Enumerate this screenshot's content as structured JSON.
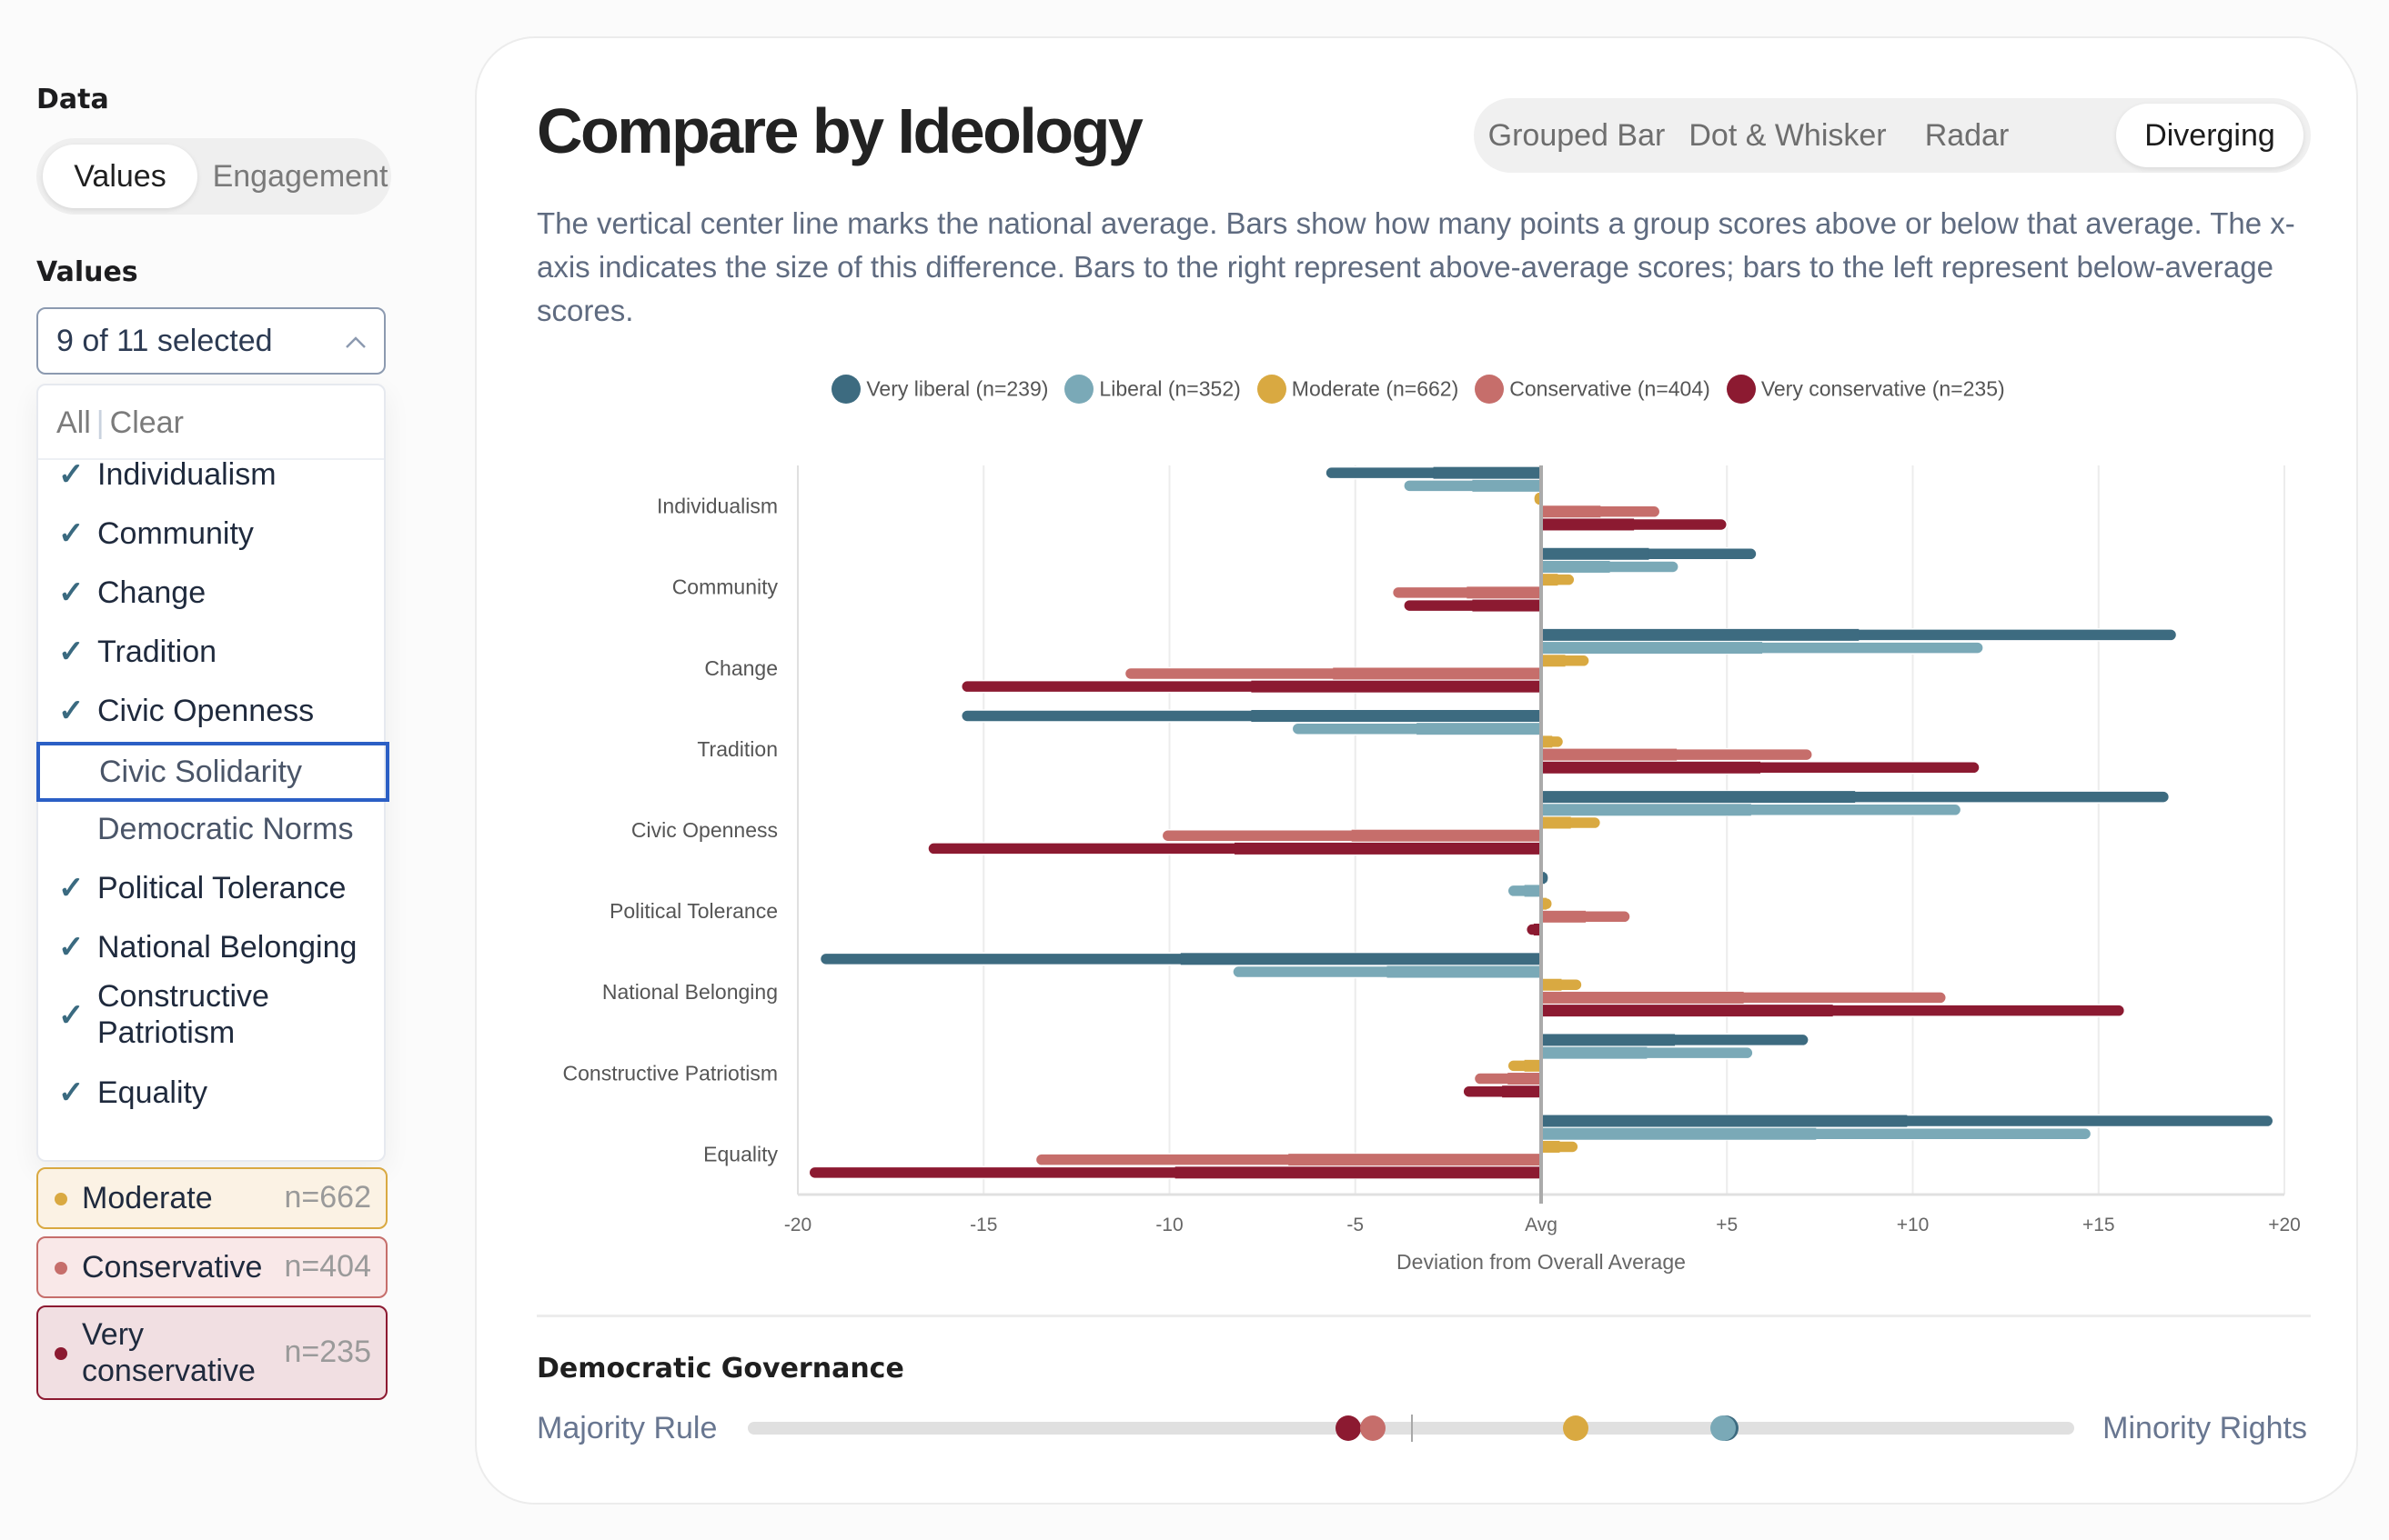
{
  "sidebar": {
    "data_heading": "Data",
    "data_toggle": [
      {
        "label": "Values",
        "active": true
      },
      {
        "label": "Engagement",
        "active": false
      }
    ],
    "values_heading": "Values",
    "values_select": {
      "summary": "9 of 11 selected",
      "actions": {
        "all": "All",
        "separator": "|",
        "clear": "Clear"
      },
      "options": [
        {
          "label": "Individualism",
          "checked": true
        },
        {
          "label": "Community",
          "checked": true
        },
        {
          "label": "Change",
          "checked": true
        },
        {
          "label": "Tradition",
          "checked": true
        },
        {
          "label": "Civic Openness",
          "checked": true
        },
        {
          "label": "Civic Solidarity",
          "checked": false,
          "focused": true
        },
        {
          "label": "Democratic Norms",
          "checked": false
        },
        {
          "label": "Political Tolerance",
          "checked": true
        },
        {
          "label": "National Belonging",
          "checked": true
        },
        {
          "label": "Constructive Patriotism",
          "checked": true
        },
        {
          "label": "Equality",
          "checked": true
        }
      ],
      "check_glyph": "✓"
    },
    "groups": [
      {
        "name": "Moderate",
        "n": "n=662",
        "color": "#d9a941",
        "bg": "#fbf2e4"
      },
      {
        "name": "Conservative",
        "n": "n=404",
        "color": "#c66e6b",
        "bg": "#f9e8e8"
      },
      {
        "name": "Very conservative",
        "n": "n=235",
        "color": "#8c1a31",
        "bg": "#f1dfe2"
      }
    ]
  },
  "header": {
    "title": "Compare by Ideology",
    "tabs": [
      {
        "label": "Grouped Bar",
        "active": false
      },
      {
        "label": "Dot & Whisker",
        "active": false
      },
      {
        "label": "Radar",
        "active": false
      },
      {
        "label": "Diverging",
        "active": true
      }
    ],
    "description": "The vertical center line marks the national average. Bars show how many points a group scores above or below that average. The x-axis indicates the size of this difference. Bars to the right represent above-average scores; bars to the left represent below-average scores."
  },
  "chart_data": {
    "type": "bar",
    "orientation": "horizontal-diverging",
    "title": "",
    "xlabel": "Deviation from Overall Average",
    "ylabel": "",
    "xlim": [
      -20,
      20
    ],
    "xticks": [
      -20,
      -15,
      -10,
      -5,
      0,
      5,
      10,
      15,
      20
    ],
    "xtick_labels": [
      "-20",
      "-15",
      "-10",
      "-5",
      "Avg",
      "+5",
      "+10",
      "+15",
      "+20"
    ],
    "grid": true,
    "legend_position": "top-center",
    "categories": [
      "Individualism",
      "Community",
      "Change",
      "Tradition",
      "Civic Openness",
      "Political Tolerance",
      "National Belonging",
      "Constructive Patriotism",
      "Equality"
    ],
    "series": [
      {
        "name": "Very liberal",
        "legend": "Very liberal (n=239)",
        "color": "#3d6b80",
        "values": [
          -5.8,
          5.8,
          17.1,
          -15.6,
          16.9,
          0.2,
          -19.4,
          7.2,
          19.7
        ]
      },
      {
        "name": "Liberal",
        "legend": "Liberal (n=352)",
        "color": "#7aa9b7",
        "values": [
          -3.7,
          3.7,
          11.9,
          -6.7,
          11.3,
          -0.9,
          -8.3,
          5.7,
          14.8
        ]
      },
      {
        "name": "Moderate",
        "legend": "Moderate (n=662)",
        "color": "#d9a941",
        "values": [
          -0.2,
          0.9,
          1.3,
          0.6,
          1.6,
          0.3,
          1.1,
          -0.9,
          1.0
        ]
      },
      {
        "name": "Conservative",
        "legend": "Conservative (n=404)",
        "color": "#c66e6b",
        "values": [
          3.2,
          -4.0,
          -11.2,
          7.3,
          -10.2,
          2.4,
          10.9,
          -1.8,
          -13.6
        ]
      },
      {
        "name": "Very conservative",
        "legend": "Very conservative (n=235)",
        "color": "#8c1a31",
        "values": [
          5.0,
          -3.7,
          -15.6,
          11.8,
          -16.5,
          -0.4,
          15.7,
          -2.1,
          -19.7
        ]
      }
    ]
  },
  "governance": {
    "title": "Democratic Governance",
    "left_label": "Majority Rule",
    "right_label": "Minority Rights",
    "average_position": 0.5,
    "positions": [
      {
        "name": "Very liberal",
        "color": "#3d6b80",
        "value": 0.737
      },
      {
        "name": "Liberal",
        "color": "#7aa9b7",
        "value": 0.735
      },
      {
        "name": "Moderate",
        "color": "#d9a941",
        "value": 0.624
      },
      {
        "name": "Conservative",
        "color": "#c66e6b",
        "value": 0.471
      },
      {
        "name": "Very conservative",
        "color": "#8c1a31",
        "value": 0.453
      }
    ]
  }
}
